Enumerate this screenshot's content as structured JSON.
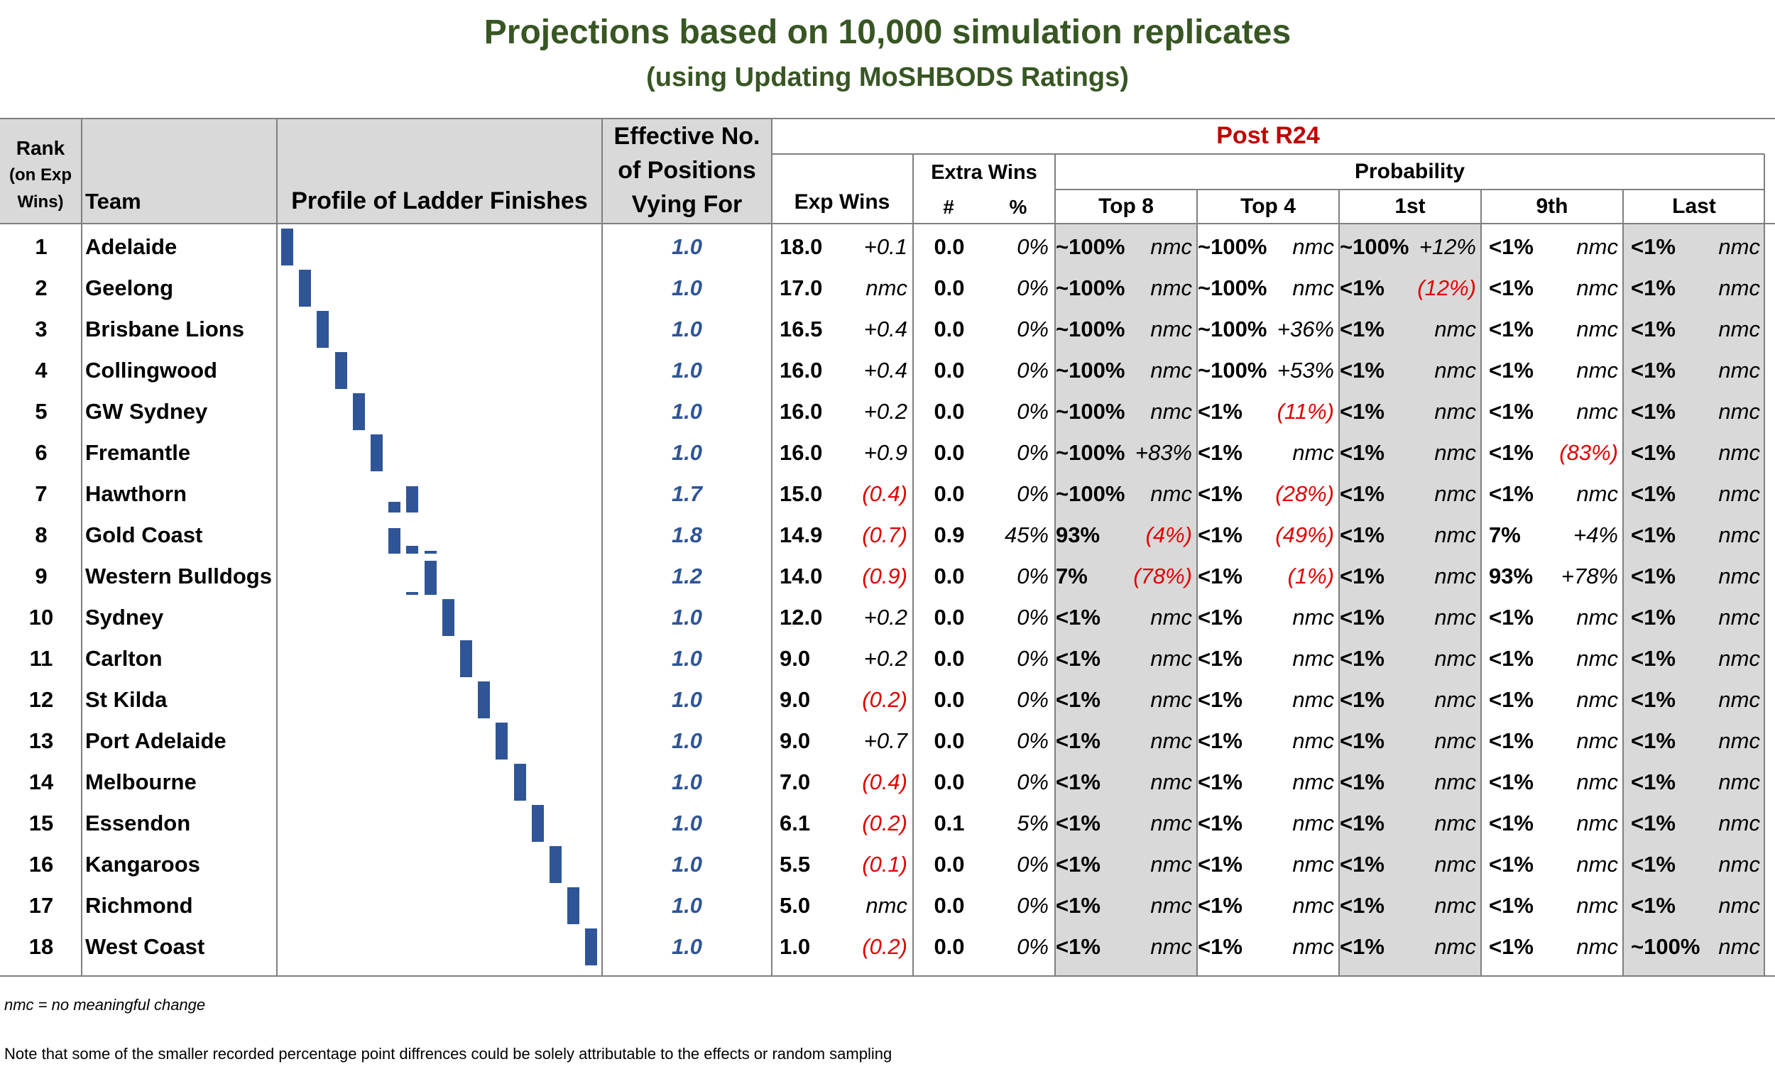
{
  "title": "Projections based on 10,000 simulation replicates",
  "subtitle": "(using Updating MoSHBODS Ratings)",
  "headers": {
    "rank_line1": "Rank",
    "rank_line2": "(on Exp",
    "rank_line3": "Wins)",
    "team": "Team",
    "profile": "Profile of Ladder Finishes",
    "eff_line1": "Effective No.",
    "eff_line2": "of Positions",
    "eff_line3": "Vying For",
    "post_round": "Post R24",
    "exp_wins": "Exp Wins",
    "extra_wins": "Extra Wins",
    "extra_num": "#",
    "extra_pct": "%",
    "probability": "Probability",
    "top8": "Top 8",
    "top4": "Top 4",
    "first": "1st",
    "ninth": "9th",
    "last": "Last"
  },
  "colors": {
    "title": "#375623",
    "post_round": "#c00000",
    "effective": "#2f5597",
    "negative": "#e00000",
    "bar": "#2f5597",
    "header_bg": "#d9d9d9"
  },
  "rows": [
    {
      "rank": "1",
      "team": "Adelaide",
      "eff": "1.0",
      "exp": "18.0",
      "expd": "+0.1",
      "xn": "0.0",
      "xp": "0%",
      "t8": "~100%",
      "t8d": "nmc",
      "t4": "~100%",
      "t4d": "nmc",
      "p1": "~100%",
      "p1d": "+12%",
      "p9": "<1%",
      "p9d": "nmc",
      "pl": "<1%",
      "pld": "nmc",
      "profile": [
        [
          1,
          1.0
        ]
      ]
    },
    {
      "rank": "2",
      "team": "Geelong",
      "eff": "1.0",
      "exp": "17.0",
      "expd": "nmc",
      "xn": "0.0",
      "xp": "0%",
      "t8": "~100%",
      "t8d": "nmc",
      "t4": "~100%",
      "t4d": "nmc",
      "p1": "<1%",
      "p1d": "(12%)",
      "p9": "<1%",
      "p9d": "nmc",
      "pl": "<1%",
      "pld": "nmc",
      "profile": [
        [
          2,
          1.0
        ]
      ]
    },
    {
      "rank": "3",
      "team": "Brisbane Lions",
      "eff": "1.0",
      "exp": "16.5",
      "expd": "+0.4",
      "xn": "0.0",
      "xp": "0%",
      "t8": "~100%",
      "t8d": "nmc",
      "t4": "~100%",
      "t4d": "+36%",
      "p1": "<1%",
      "p1d": "nmc",
      "p9": "<1%",
      "p9d": "nmc",
      "pl": "<1%",
      "pld": "nmc",
      "profile": [
        [
          3,
          1.0
        ]
      ]
    },
    {
      "rank": "4",
      "team": "Collingwood",
      "eff": "1.0",
      "exp": "16.0",
      "expd": "+0.4",
      "xn": "0.0",
      "xp": "0%",
      "t8": "~100%",
      "t8d": "nmc",
      "t4": "~100%",
      "t4d": "+53%",
      "p1": "<1%",
      "p1d": "nmc",
      "p9": "<1%",
      "p9d": "nmc",
      "pl": "<1%",
      "pld": "nmc",
      "profile": [
        [
          4,
          1.0
        ]
      ]
    },
    {
      "rank": "5",
      "team": "GW Sydney",
      "eff": "1.0",
      "exp": "16.0",
      "expd": "+0.2",
      "xn": "0.0",
      "xp": "0%",
      "t8": "~100%",
      "t8d": "nmc",
      "t4": "<1%",
      "t4d": "(11%)",
      "p1": "<1%",
      "p1d": "nmc",
      "p9": "<1%",
      "p9d": "nmc",
      "pl": "<1%",
      "pld": "nmc",
      "profile": [
        [
          5,
          1.0
        ]
      ]
    },
    {
      "rank": "6",
      "team": "Fremantle",
      "eff": "1.0",
      "exp": "16.0",
      "expd": "+0.9",
      "xn": "0.0",
      "xp": "0%",
      "t8": "~100%",
      "t8d": "+83%",
      "t4": "<1%",
      "t4d": "nmc",
      "p1": "<1%",
      "p1d": "nmc",
      "p9": "<1%",
      "p9d": "(83%)",
      "pl": "<1%",
      "pld": "nmc",
      "profile": [
        [
          6,
          1.0
        ]
      ]
    },
    {
      "rank": "7",
      "team": "Hawthorn",
      "eff": "1.7",
      "exp": "15.0",
      "expd": "(0.4)",
      "xn": "0.0",
      "xp": "0%",
      "t8": "~100%",
      "t8d": "nmc",
      "t4": "<1%",
      "t4d": "(28%)",
      "p1": "<1%",
      "p1d": "nmc",
      "p9": "<1%",
      "p9d": "nmc",
      "pl": "<1%",
      "pld": "nmc",
      "profile": [
        [
          7,
          0.28
        ],
        [
          8,
          0.72
        ]
      ]
    },
    {
      "rank": "8",
      "team": "Gold Coast",
      "eff": "1.8",
      "exp": "14.9",
      "expd": "(0.7)",
      "xn": "0.9",
      "xp": "45%",
      "t8": "93%",
      "t8d": "(4%)",
      "t4": "<1%",
      "t4d": "(49%)",
      "p1": "<1%",
      "p1d": "nmc",
      "p9": "7%",
      "p9d": "+4%",
      "pl": "<1%",
      "pld": "nmc",
      "profile": [
        [
          7,
          0.7
        ],
        [
          8,
          0.22
        ],
        [
          9,
          0.07
        ]
      ]
    },
    {
      "rank": "9",
      "team": "Western Bulldogs",
      "eff": "1.2",
      "exp": "14.0",
      "expd": "(0.9)",
      "xn": "0.0",
      "xp": "0%",
      "t8": "7%",
      "t8d": "(78%)",
      "t4": "<1%",
      "t4d": "(1%)",
      "p1": "<1%",
      "p1d": "nmc",
      "p9": "93%",
      "p9d": "+78%",
      "pl": "<1%",
      "pld": "nmc",
      "profile": [
        [
          8,
          0.07
        ],
        [
          9,
          0.93
        ]
      ]
    },
    {
      "rank": "10",
      "team": "Sydney",
      "eff": "1.0",
      "exp": "12.0",
      "expd": "+0.2",
      "xn": "0.0",
      "xp": "0%",
      "t8": "<1%",
      "t8d": "nmc",
      "t4": "<1%",
      "t4d": "nmc",
      "p1": "<1%",
      "p1d": "nmc",
      "p9": "<1%",
      "p9d": "nmc",
      "pl": "<1%",
      "pld": "nmc",
      "profile": [
        [
          10,
          1.0
        ]
      ]
    },
    {
      "rank": "11",
      "team": "Carlton",
      "eff": "1.0",
      "exp": "9.0",
      "expd": "+0.2",
      "xn": "0.0",
      "xp": "0%",
      "t8": "<1%",
      "t8d": "nmc",
      "t4": "<1%",
      "t4d": "nmc",
      "p1": "<1%",
      "p1d": "nmc",
      "p9": "<1%",
      "p9d": "nmc",
      "pl": "<1%",
      "pld": "nmc",
      "profile": [
        [
          11,
          1.0
        ]
      ]
    },
    {
      "rank": "12",
      "team": "St Kilda",
      "eff": "1.0",
      "exp": "9.0",
      "expd": "(0.2)",
      "xn": "0.0",
      "xp": "0%",
      "t8": "<1%",
      "t8d": "nmc",
      "t4": "<1%",
      "t4d": "nmc",
      "p1": "<1%",
      "p1d": "nmc",
      "p9": "<1%",
      "p9d": "nmc",
      "pl": "<1%",
      "pld": "nmc",
      "profile": [
        [
          12,
          1.0
        ]
      ]
    },
    {
      "rank": "13",
      "team": "Port Adelaide",
      "eff": "1.0",
      "exp": "9.0",
      "expd": "+0.7",
      "xn": "0.0",
      "xp": "0%",
      "t8": "<1%",
      "t8d": "nmc",
      "t4": "<1%",
      "t4d": "nmc",
      "p1": "<1%",
      "p1d": "nmc",
      "p9": "<1%",
      "p9d": "nmc",
      "pl": "<1%",
      "pld": "nmc",
      "profile": [
        [
          13,
          1.0
        ]
      ]
    },
    {
      "rank": "14",
      "team": "Melbourne",
      "eff": "1.0",
      "exp": "7.0",
      "expd": "(0.4)",
      "xn": "0.0",
      "xp": "0%",
      "t8": "<1%",
      "t8d": "nmc",
      "t4": "<1%",
      "t4d": "nmc",
      "p1": "<1%",
      "p1d": "nmc",
      "p9": "<1%",
      "p9d": "nmc",
      "pl": "<1%",
      "pld": "nmc",
      "profile": [
        [
          14,
          1.0
        ]
      ]
    },
    {
      "rank": "15",
      "team": "Essendon",
      "eff": "1.0",
      "exp": "6.1",
      "expd": "(0.2)",
      "xn": "0.1",
      "xp": "5%",
      "t8": "<1%",
      "t8d": "nmc",
      "t4": "<1%",
      "t4d": "nmc",
      "p1": "<1%",
      "p1d": "nmc",
      "p9": "<1%",
      "p9d": "nmc",
      "pl": "<1%",
      "pld": "nmc",
      "profile": [
        [
          15,
          1.0
        ]
      ]
    },
    {
      "rank": "16",
      "team": "Kangaroos",
      "eff": "1.0",
      "exp": "5.5",
      "expd": "(0.1)",
      "xn": "0.0",
      "xp": "0%",
      "t8": "<1%",
      "t8d": "nmc",
      "t4": "<1%",
      "t4d": "nmc",
      "p1": "<1%",
      "p1d": "nmc",
      "p9": "<1%",
      "p9d": "nmc",
      "pl": "<1%",
      "pld": "nmc",
      "profile": [
        [
          16,
          1.0
        ]
      ]
    },
    {
      "rank": "17",
      "team": "Richmond",
      "eff": "1.0",
      "exp": "5.0",
      "expd": "nmc",
      "xn": "0.0",
      "xp": "0%",
      "t8": "<1%",
      "t8d": "nmc",
      "t4": "<1%",
      "t4d": "nmc",
      "p1": "<1%",
      "p1d": "nmc",
      "p9": "<1%",
      "p9d": "nmc",
      "pl": "<1%",
      "pld": "nmc",
      "profile": [
        [
          17,
          1.0
        ]
      ]
    },
    {
      "rank": "18",
      "team": "West Coast",
      "eff": "1.0",
      "exp": "1.0",
      "expd": "(0.2)",
      "xn": "0.0",
      "xp": "0%",
      "t8": "<1%",
      "t8d": "nmc",
      "t4": "<1%",
      "t4d": "nmc",
      "p1": "<1%",
      "p1d": "nmc",
      "p9": "<1%",
      "p9d": "nmc",
      "pl": "~100%",
      "pld": "nmc",
      "profile": [
        [
          18,
          1.0
        ]
      ]
    }
  ],
  "footnotes": {
    "nmc": "nmc = no meaningful change",
    "note": "Note that some of the smaller recorded percentage point diffrences could be solely attributable to the effects or random sampling"
  }
}
